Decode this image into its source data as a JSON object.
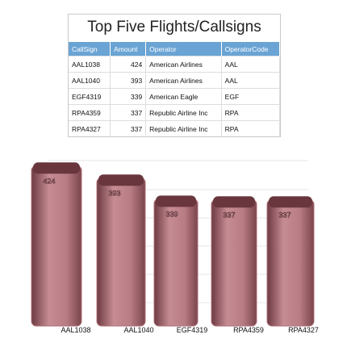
{
  "table": {
    "title": "Top Five Flights/Callsigns",
    "header": [
      "CallSign",
      "Amount",
      "Operator",
      "OperatorCode"
    ],
    "rows": [
      [
        "AAL1038",
        "424",
        "American Airlines",
        "AAL"
      ],
      [
        "AAL1040",
        "393",
        "American Airlines",
        "AAL"
      ],
      [
        "EGF4319",
        "339",
        "American Eagle",
        "EGF"
      ],
      [
        "RPA4359",
        "337",
        "Republic Airline Inc",
        "RPA"
      ],
      [
        "RPA4327",
        "337",
        "Republic Airline Inc",
        "RPA"
      ]
    ]
  },
  "chart_data": {
    "type": "bar",
    "categories": [
      "AAL1038",
      "AAL1040",
      "EGF4319",
      "RPA4359",
      "RPA4327"
    ],
    "values": [
      424,
      393,
      339,
      337,
      337
    ],
    "color": "#b0727a",
    "ylim": [
      0,
      435
    ]
  }
}
